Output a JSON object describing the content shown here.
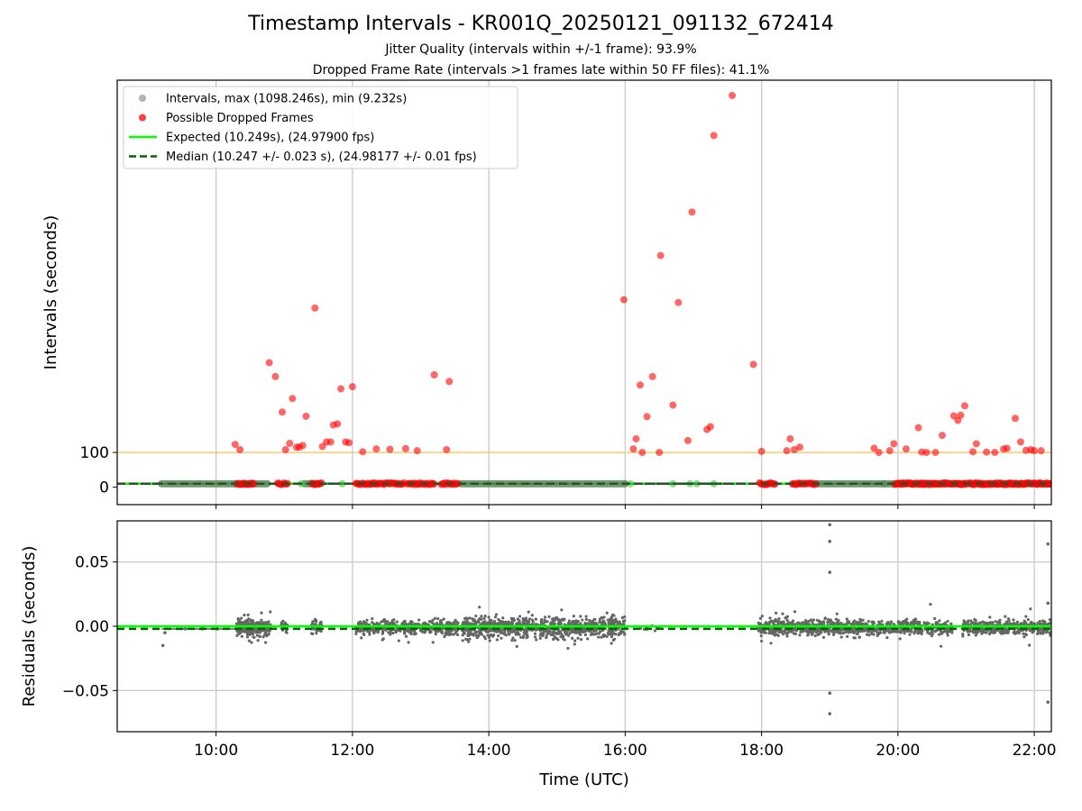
{
  "chart_data": {
    "title": "Timestamp Intervals - KR001Q_20250121_091132_672414",
    "subtitle_lines": [
      "Jitter Quality (intervals within +/-1 frame): 93.9%",
      "Dropped Frame Rate (intervals >1 frames late within 50 FF files): 41.1%"
    ],
    "xlabel": "Time (UTC)",
    "x_unit": "hours UTC",
    "xlim": [
      8.55,
      22.25
    ],
    "x_ticks": [
      10,
      12,
      14,
      16,
      18,
      20,
      22
    ],
    "x_tick_labels": [
      "10:00",
      "12:00",
      "14:00",
      "16:00",
      "18:00",
      "20:00",
      "22:00"
    ],
    "grid": "vertical",
    "panels": [
      {
        "type": "scatter",
        "ylabel": "Intervals (seconds)",
        "ylim": [
          -50,
          1170
        ],
        "y_ticks": [
          0,
          100
        ],
        "y_tick_labels": [
          "0",
          "100"
        ],
        "legend_position": "top-left",
        "legend": [
          {
            "label": "Intervals, max (1098.246s), min (9.232s)",
            "kind": "dot",
            "color": "#999999"
          },
          {
            "label": "Possible Dropped Frames",
            "kind": "dot",
            "color": "#ff0000"
          },
          {
            "label": "Expected (10.249s), (24.97900 fps)",
            "kind": "line",
            "color": "#00ff00"
          },
          {
            "label": "Median (10.247 +/- 0.023 s), (24.98177 +/- 0.01 fps)",
            "kind": "dashed",
            "color": "#006400"
          }
        ],
        "reference_lines": [
          {
            "y": 100,
            "color": "#ffa500"
          },
          {
            "y": 10.249,
            "color": "#00ff00",
            "style": "solid"
          },
          {
            "y": 10.247,
            "color": "#006400",
            "style": "dashed"
          }
        ],
        "dense_bands": [
          {
            "x_from": 9.2,
            "x_to": 10.75,
            "y": 10
          },
          {
            "x_from": 11.3,
            "x_to": 11.5,
            "y": 10
          },
          {
            "x_from": 13.6,
            "x_to": 16.0,
            "y": 10
          },
          {
            "x_from": 18.8,
            "x_to": 19.8,
            "y": 10
          },
          {
            "x_from": 19.8,
            "x_to": 22.25,
            "y": 10
          }
        ],
        "bottom_red_ranges": [
          [
            10.3,
            10.55
          ],
          [
            10.9,
            11.05
          ],
          [
            11.4,
            11.55
          ],
          [
            12.05,
            12.75
          ],
          [
            12.8,
            13.2
          ],
          [
            13.3,
            13.55
          ],
          [
            17.97,
            18.2
          ],
          [
            18.45,
            18.8
          ],
          [
            19.95,
            21.0
          ],
          [
            21.05,
            22.25
          ]
        ],
        "dropped_frames_outliers": {
          "x": [
            10.28,
            10.35,
            10.78,
            10.87,
            10.97,
            11.02,
            11.08,
            11.12,
            11.18,
            11.22,
            11.27,
            11.32,
            11.45,
            11.56,
            11.62,
            11.68,
            11.72,
            11.78,
            11.83,
            11.9,
            11.95,
            12.0,
            12.15,
            12.35,
            12.55,
            12.78,
            12.95,
            13.2,
            13.38,
            13.42,
            15.98,
            16.12,
            16.16,
            16.22,
            16.25,
            16.32,
            16.4,
            16.5,
            16.52,
            16.7,
            16.78,
            16.92,
            16.98,
            17.2,
            17.25,
            17.3,
            17.57,
            17.88,
            18.0,
            18.37,
            18.42,
            18.48,
            18.56,
            19.65,
            19.72,
            19.88,
            19.94,
            20.12,
            20.3,
            20.35,
            20.42,
            20.55,
            20.65,
            20.82,
            20.88,
            20.92,
            20.98,
            21.1,
            21.15,
            21.3,
            21.42,
            21.55,
            21.6,
            21.72,
            21.8,
            21.88,
            21.95,
            22.0,
            22.1
          ],
          "y": [
            123,
            108,
            358,
            318,
            216,
            108,
            126,
            255,
            115,
            115,
            120,
            204,
            515,
            117,
            130,
            130,
            179,
            182,
            283,
            130,
            128,
            289,
            102,
            110,
            109,
            111,
            105,
            323,
            108,
            304,
            539,
            110,
            139,
            294,
            100,
            203,
            318,
            100,
            666,
            236,
            531,
            134,
            791,
            166,
            174,
            1011,
            1126,
            353,
            103,
            105,
            139,
            108,
            115,
            112,
            100,
            105,
            125,
            110,
            171,
            101,
            100,
            100,
            149,
            205,
            192,
            207,
            234,
            102,
            125,
            101,
            100,
            110,
            112,
            198,
            130,
            106,
            108,
            105,
            105
          ]
        }
      },
      {
        "type": "scatter",
        "ylabel": "Residuals (seconds)",
        "ylim": [
          -0.082,
          0.082
        ],
        "y_ticks": [
          -0.05,
          0.0,
          0.05
        ],
        "y_tick_labels": [
          "−0.05",
          "0.00",
          "0.05"
        ],
        "grid": "both",
        "reference_lines": [
          {
            "y": 0.0,
            "color": "#00ff00",
            "style": "solid"
          },
          {
            "y": -0.002,
            "color": "#006400",
            "style": "dashed"
          }
        ],
        "clusters": [
          {
            "x_from": 10.3,
            "x_to": 10.8,
            "spread": 0.005,
            "count": 300
          },
          {
            "x_from": 10.95,
            "x_to": 11.05,
            "spread": 0.004,
            "count": 25
          },
          {
            "x_from": 11.4,
            "x_to": 11.55,
            "spread": 0.005,
            "count": 35
          },
          {
            "x_from": 12.05,
            "x_to": 13.55,
            "spread": 0.0045,
            "count": 450
          },
          {
            "x_from": 13.6,
            "x_to": 16.0,
            "spread": 0.0065,
            "count": 850
          },
          {
            "x_from": 16.2,
            "x_to": 16.5,
            "spread": 0.002,
            "count": 8
          },
          {
            "x_from": 17.95,
            "x_to": 19.9,
            "spread": 0.005,
            "count": 650
          },
          {
            "x_from": 19.9,
            "x_to": 20.8,
            "spread": 0.0045,
            "count": 250
          },
          {
            "x_from": 20.95,
            "x_to": 22.25,
            "spread": 0.0045,
            "count": 420
          }
        ],
        "sparse_points": {
          "x": [
            9.22,
            9.25,
            9.55,
            9.8,
            10.02,
            19.0,
            19.0,
            19.0,
            19.0,
            19.0,
            22.2,
            22.2,
            22.2
          ],
          "y": [
            -0.015,
            -0.005,
            -0.002,
            -0.002,
            -0.002,
            0.079,
            0.066,
            0.042,
            -0.052,
            -0.068,
            0.064,
            0.018,
            -0.059
          ]
        }
      }
    ]
  }
}
